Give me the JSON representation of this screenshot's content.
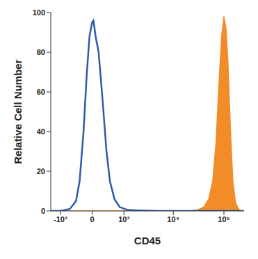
{
  "chart_data": {
    "type": "line",
    "x_label": "CD45",
    "y_label": "Relative Cell Number",
    "xlim": [
      -1600,
      250000
    ],
    "xticks": [
      {
        "value": -1000,
        "label": "-10³"
      },
      0,
      {
        "value": 1000,
        "label": "10³"
      },
      {
        "value": 10000,
        "label": "10⁴"
      },
      {
        "value": 100000,
        "label": "10⁵"
      }
    ],
    "ylim": [
      0,
      100
    ],
    "yticks": [
      0,
      20,
      40,
      60,
      80,
      100
    ],
    "grid": false,
    "series": [
      {
        "type": "area",
        "color": "#f28c28",
        "x": [
          -1600,
          2000,
          20000,
          30000,
          40000,
          50000,
          60000,
          70000,
          80000,
          90000,
          100000,
          110000,
          120000,
          135000,
          150000,
          170000,
          200000,
          230000,
          250000
        ],
        "values": [
          0,
          0,
          0,
          0.5,
          2,
          6,
          15,
          35,
          65,
          88,
          98,
          92,
          75,
          40,
          15,
          4,
          0.5,
          0,
          0
        ]
      },
      {
        "type": "line",
        "color": "#2b5ca8",
        "x": [
          -1600,
          -1000,
          -600,
          -400,
          -300,
          -200,
          -120,
          -60,
          0,
          30,
          80,
          150,
          250,
          350,
          450,
          600,
          800,
          1200,
          2000,
          5000,
          250000
        ],
        "values": [
          0,
          0,
          1,
          5,
          15,
          40,
          70,
          88,
          95,
          96,
          88,
          80,
          55,
          30,
          15,
          6,
          2,
          0.5,
          0.3,
          0,
          0
        ]
      }
    ]
  }
}
